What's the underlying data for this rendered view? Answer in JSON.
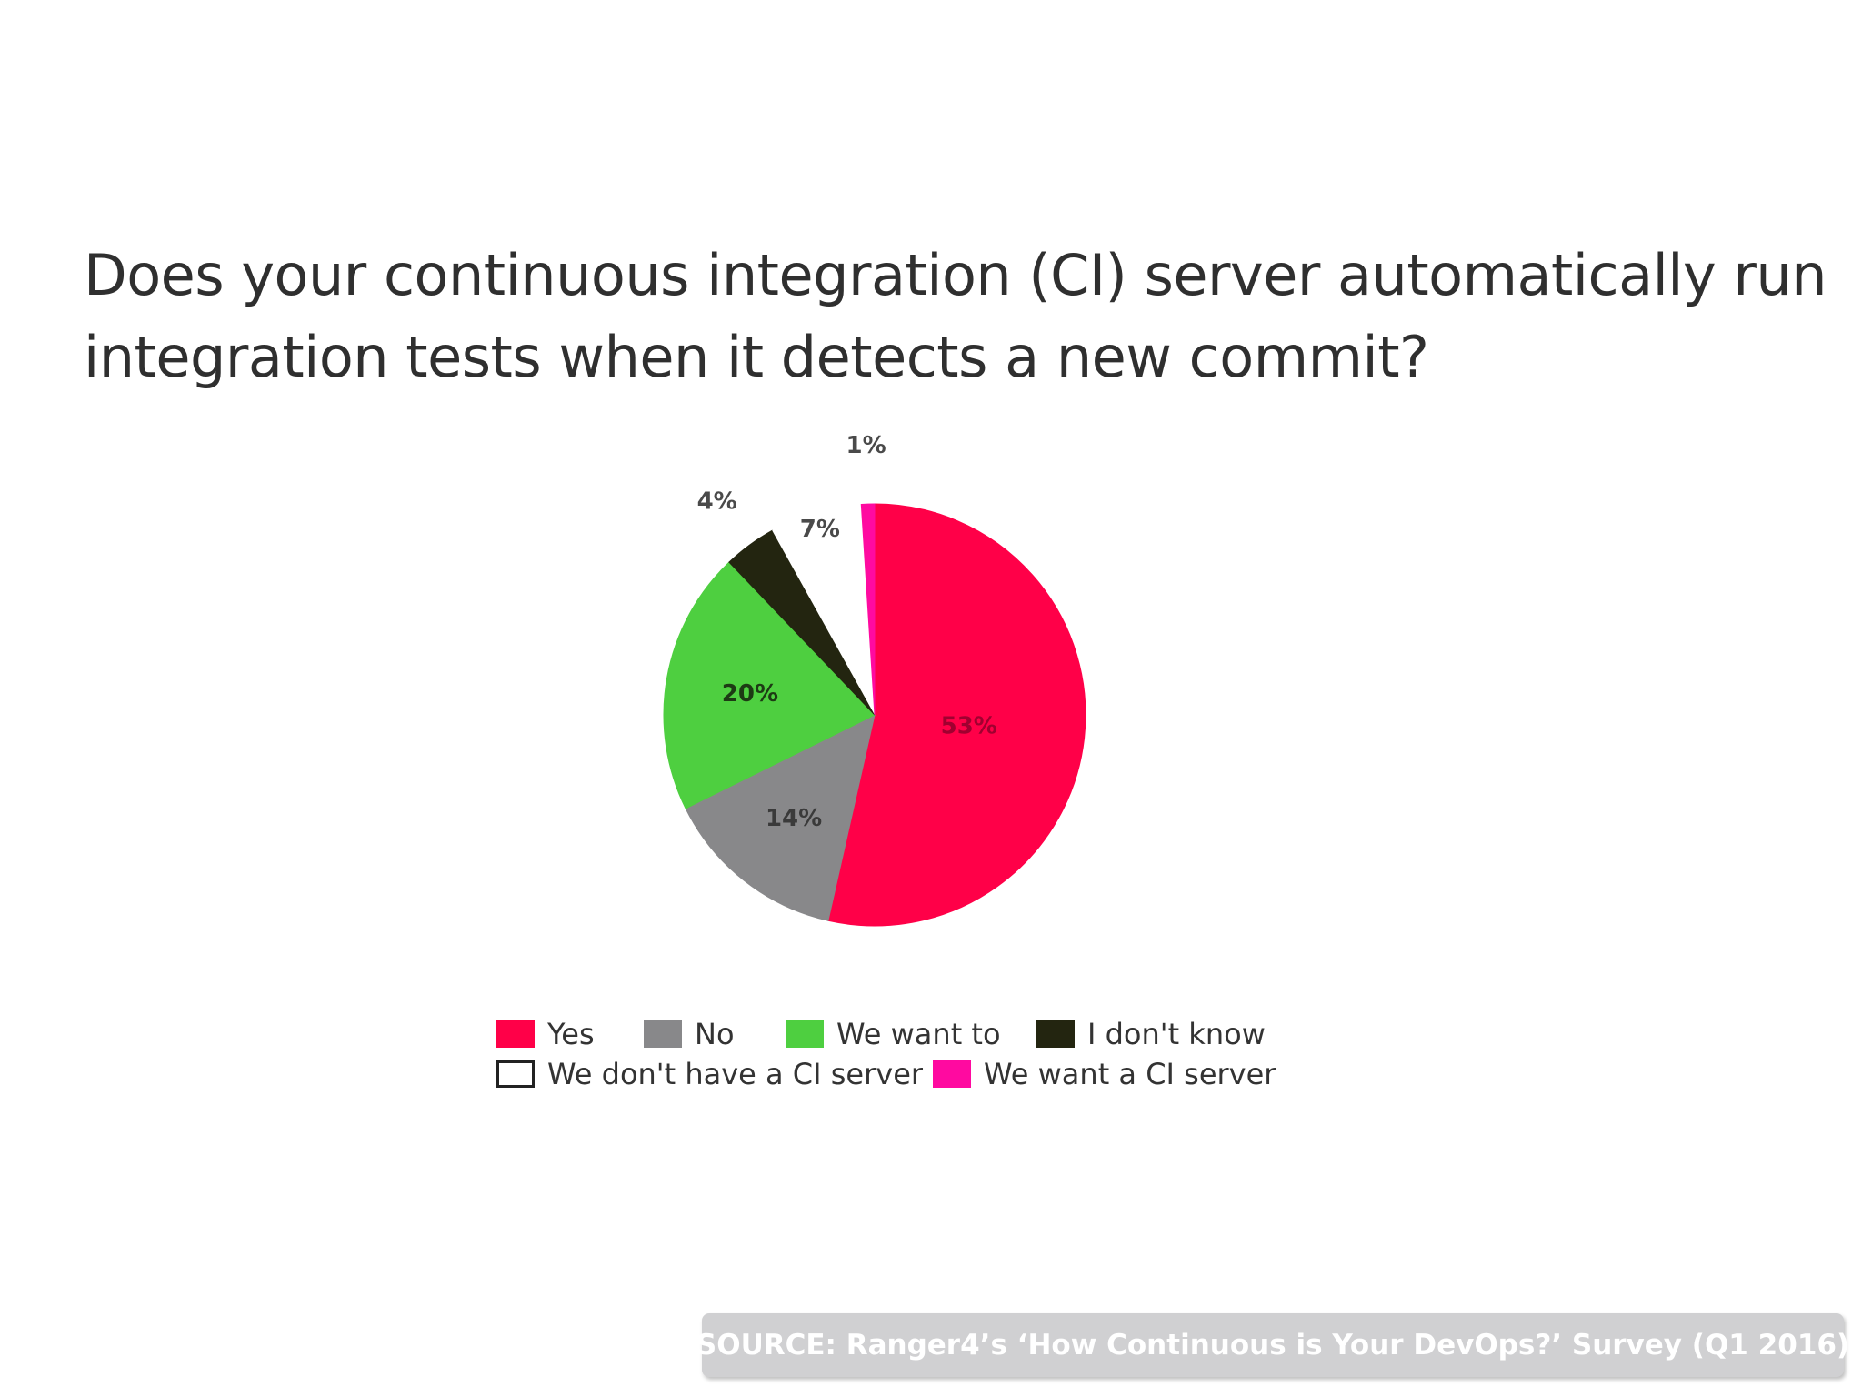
{
  "chart_data": {
    "type": "pie",
    "title": "Does your continuous integration (CI) server automatically run integration tests when it detects a new commit?",
    "title_lines": [
      "Does your continuous integration (CI) server automatically run",
      "integration tests when it detects a new commit?"
    ],
    "series": [
      {
        "name": "Yes",
        "value": 53,
        "label": "53%",
        "color": "#ff0048"
      },
      {
        "name": "No",
        "value": 14,
        "label": "14%",
        "color": "#88888a"
      },
      {
        "name": "We want to",
        "value": 20,
        "label": "20%",
        "color": "#4ecf40"
      },
      {
        "name": "I don't know",
        "value": 4,
        "label": "4%",
        "color": "#232510"
      },
      {
        "name": "We don't have a CI server",
        "value": 7,
        "label": "7%",
        "color": "#ffffff"
      },
      {
        "name": "We want a CI server",
        "value": 1,
        "label": "1%",
        "color": "#ff0aa0"
      }
    ],
    "legend_placement": "bottom"
  },
  "legend": [
    {
      "label": "Yes",
      "color": "#ff0048"
    },
    {
      "label": "No",
      "color": "#88888a"
    },
    {
      "label": "We want to",
      "color": "#4ecf40"
    },
    {
      "label": "I don't know",
      "color": "#232510"
    },
    {
      "label": "We don't have a CI server",
      "color": "#ffffff"
    },
    {
      "label": "We want a CI server",
      "color": "#ff0aa0"
    }
  ],
  "source": "SOURCE: Ranger4’s ‘How Continuous is Your DevOps?’ Survey (Q1 2016)"
}
